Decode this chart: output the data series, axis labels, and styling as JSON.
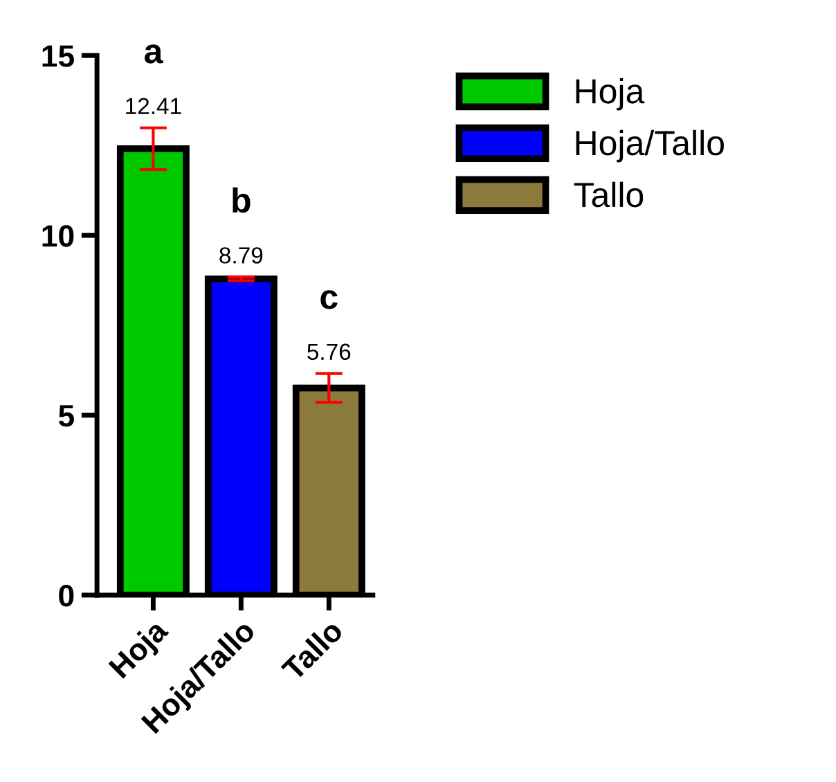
{
  "chart_data": {
    "type": "bar",
    "categories": [
      "Hoja",
      "Hoja/Tallo",
      "Tallo"
    ],
    "series": [
      {
        "name": "Hoja",
        "color": "#00c800",
        "values": [
          12.41,
          null,
          null
        ],
        "errors": [
          0.58,
          null,
          null
        ]
      },
      {
        "name": "Hoja/Tallo",
        "color": "#0000ff",
        "values": [
          null,
          8.79,
          null
        ],
        "errors": [
          null,
          0.05,
          null
        ]
      },
      {
        "name": "Tallo",
        "color": "#8c7a3c",
        "values": [
          null,
          null,
          5.76
        ],
        "errors": [
          null,
          null,
          0.4
        ]
      }
    ],
    "data_labels": true,
    "ylim": [
      0,
      15
    ],
    "yticks": [
      0,
      5,
      10,
      15
    ],
    "grid": false,
    "legend": "top right",
    "annotations": [
      "a",
      "b",
      "c"
    ]
  }
}
